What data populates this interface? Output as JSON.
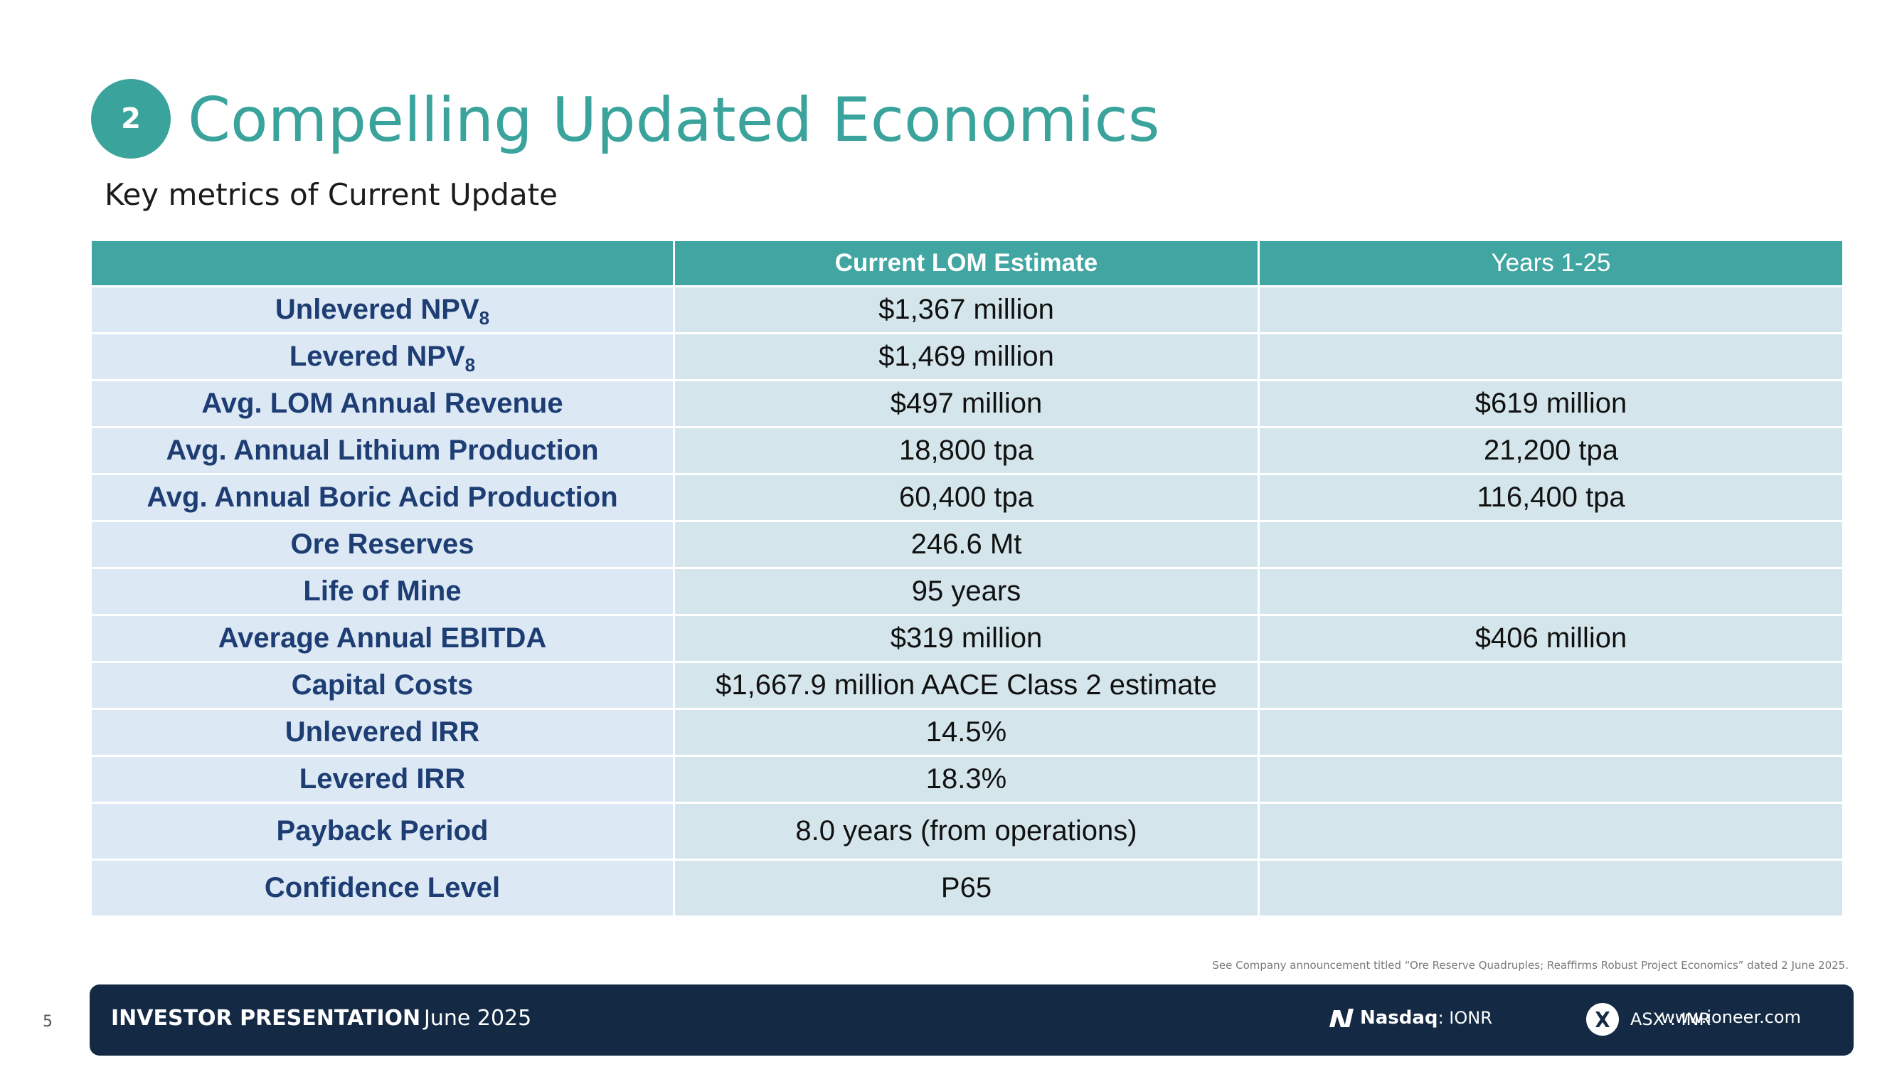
{
  "header": {
    "section_number": "2",
    "title": "Compelling Updated Economics",
    "subtitle": "Key metrics of Current Update"
  },
  "table": {
    "columns": [
      "",
      "Current LOM Estimate",
      "Years 1-25"
    ],
    "rows": [
      {
        "metric": "Unlevered NPV",
        "metric_sub": "8",
        "current": "$1,367 million",
        "years": ""
      },
      {
        "metric": "Levered NPV",
        "metric_sub": "8",
        "current": "$1,469 million",
        "years": ""
      },
      {
        "metric": "Avg. LOM Annual Revenue",
        "current": "$497 million",
        "years": "$619 million"
      },
      {
        "metric": "Avg. Annual Lithium Production",
        "current": "18,800 tpa",
        "years": "21,200 tpa"
      },
      {
        "metric": "Avg. Annual Boric Acid Production",
        "current": "60,400 tpa",
        "years": "116,400 tpa"
      },
      {
        "metric": "Ore Reserves",
        "current": "246.6 Mt",
        "years": ""
      },
      {
        "metric": "Life of Mine",
        "current": "95 years",
        "years": ""
      },
      {
        "metric": "Average Annual EBITDA",
        "current": "$319 million",
        "years": "$406 million"
      },
      {
        "metric": "Capital Costs",
        "current": "$1,667.9 million AACE Class 2 estimate",
        "years": ""
      },
      {
        "metric": "Unlevered IRR",
        "current": "14.5%",
        "years": ""
      },
      {
        "metric": "Levered IRR",
        "current": "18.3%",
        "years": ""
      },
      {
        "metric": "Payback Period",
        "current": "8.0 years (from operations)",
        "years": ""
      },
      {
        "metric": "Confidence Level",
        "current": "P65",
        "years": ""
      }
    ]
  },
  "footnote": "See Company announcement titled “Ore Reserve Quadruples; Reaffirms Robust Project Economics” dated 2 June 2025.",
  "page_number": "5",
  "footer": {
    "title": "INVESTOR PRESENTATION",
    "date": "June 2025",
    "nasdaq_label": "Nasdaq",
    "nasdaq_ticker": " : IONR",
    "asx_ticker": "ASX : INR",
    "website": "www.ioneer.com"
  },
  "colors": {
    "accent_teal": "#3aa39c",
    "header_teal": "#41a5a1",
    "metric_bg": "#dce9f5",
    "value_bg": "#d4e6ec",
    "metric_text": "#1d3d73",
    "footer_navy": "#142a44"
  },
  "icons": {
    "nasdaq": "nasdaq-logo-icon",
    "asx": "asx-logo-icon"
  }
}
